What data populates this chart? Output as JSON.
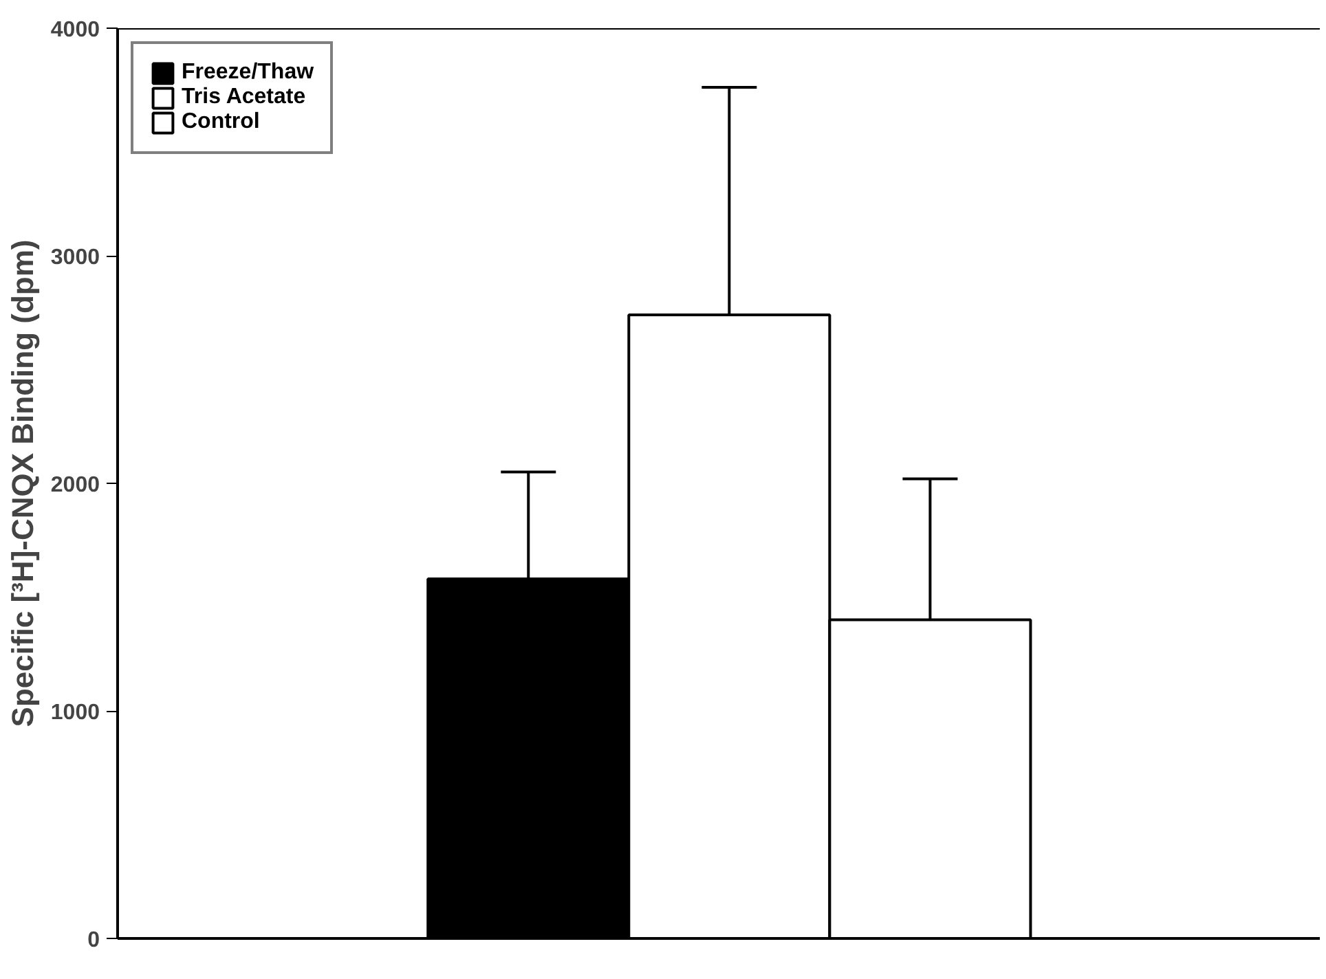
{
  "chart_data": {
    "type": "bar",
    "ylabel": "Specific [³H]-CNQX Binding (dpm)",
    "categories": [
      null
    ],
    "series": [
      {
        "name": "Freeze/Thaw",
        "color": "#000000",
        "values": [
          1580
        ],
        "errors": [
          [
            1580,
            2050
          ]
        ]
      },
      {
        "name": "Tris Acetate",
        "color": "#ffffff",
        "values": [
          2740
        ],
        "errors": [
          [
            2740,
            3740
          ]
        ]
      },
      {
        "name": "Control",
        "color": "#ffffff",
        "values": [
          1400
        ],
        "errors": [
          [
            1400,
            2020
          ]
        ]
      }
    ],
    "ylim": [
      0,
      4000
    ],
    "yticks": [
      0,
      1000,
      2000,
      3000,
      4000
    ],
    "grid": false,
    "legend": "top left",
    "tick_labels": "y"
  }
}
